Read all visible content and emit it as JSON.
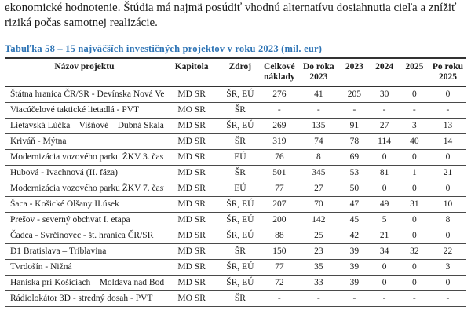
{
  "paragraph": {
    "line1": "ekonomické hodnotenie. Štúdia má najmä posúdiť vhodnú alternatívu dosiahnutia cieľa a znížiť",
    "line2": "riziká počas samotnej realizácie."
  },
  "table": {
    "caption": "Tabuľka 58 – 15 najväčších investičných projektov v roku 2023 (mil. eur)",
    "caption_color": "#2E74B5",
    "border_color": "#323232",
    "columns": [
      "Názov projektu",
      "Kapitola",
      "Zdroj",
      "Celkové náklady",
      "Do roka 2023",
      "2023",
      "2024",
      "2025",
      "Po roku 2025"
    ],
    "col_widths": [
      "34.5%",
      "12%",
      "9%",
      "8%",
      "9%",
      "6.5%",
      "6.5%",
      "6.5%",
      "8%"
    ],
    "rows": [
      [
        "Štátna hranica ČR/SR - Devínska Nová Ves",
        "MD SR",
        "ŠR, EÚ",
        "276",
        "41",
        "205",
        "30",
        "0",
        "0"
      ],
      [
        "Viacúčelové taktické lietadlá - PVT",
        "MO SR",
        "ŠR",
        "-",
        "-",
        "-",
        "-",
        "-",
        "-"
      ],
      [
        "Lietavská Lúčka – Višňové – Dubná Skala",
        "MD SR",
        "ŠR, EÚ",
        "269",
        "135",
        "91",
        "27",
        "3",
        "13"
      ],
      [
        "Kriváň - Mýtna",
        "MD SR",
        "ŠR",
        "319",
        "74",
        "78",
        "114",
        "40",
        "14"
      ],
      [
        "Modernizácia vozového parku ŽKV 3. časť",
        "MD SR",
        "EÚ",
        "76",
        "8",
        "69",
        "0",
        "0",
        "0"
      ],
      [
        "Hubová - Ivachnová (II. fáza)",
        "MD SR",
        "ŠR",
        "501",
        "345",
        "53",
        "81",
        "1",
        "21"
      ],
      [
        "Modernizácia vozového parku ŽKV 7. časť",
        "MD SR",
        "EÚ",
        "77",
        "27",
        "50",
        "0",
        "0",
        "0"
      ],
      [
        "Šaca - Košické Olšany II.úsek",
        "MD SR",
        "ŠR, EÚ",
        "207",
        "70",
        "47",
        "49",
        "31",
        "10"
      ],
      [
        "Prešov - severný obchvat I. etapa",
        "MD SR",
        "ŠR, EÚ",
        "200",
        "142",
        "45",
        "5",
        "0",
        "8"
      ],
      [
        "Čadca - Svrčinovec - št. hranica ČR/SR",
        "MD SR",
        "ŠR, EÚ",
        "88",
        "25",
        "42",
        "21",
        "0",
        "0"
      ],
      [
        "D1 Bratislava – Triblavina",
        "MD SR",
        "ŠR",
        "150",
        "23",
        "39",
        "34",
        "32",
        "22"
      ],
      [
        "Tvrdošín - Nižná",
        "MD SR",
        "ŠR, EÚ",
        "77",
        "35",
        "39",
        "0",
        "0",
        "3"
      ],
      [
        "Haniska pri Košiciach – Moldava nad Bodvou",
        "MD SR",
        "ŠR, EÚ",
        "72",
        "33",
        "39",
        "0",
        "0",
        "0"
      ],
      [
        "Rádiolokátor 3D - stredný dosah - PVT",
        "MO SR",
        "ŠR",
        "-",
        "-",
        "-",
        "-",
        "-",
        "-"
      ]
    ]
  }
}
